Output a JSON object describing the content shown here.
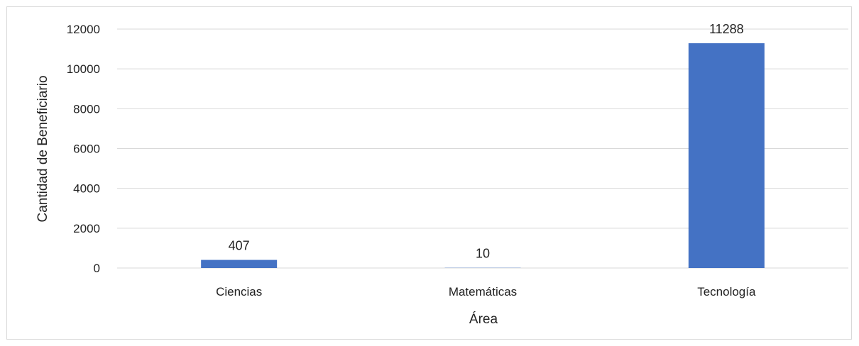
{
  "chart_data": {
    "type": "bar",
    "title": "",
    "xlabel": "Área",
    "ylabel": "Cantidad de Beneficiario",
    "categories": [
      "Ciencias",
      "Matemáticas",
      "Tecnología"
    ],
    "values": [
      407,
      10,
      11288
    ],
    "data_labels": [
      "407",
      "10",
      "11288"
    ],
    "ylim": [
      0,
      12000
    ],
    "yticks": [
      0,
      2000,
      4000,
      6000,
      8000,
      10000,
      12000
    ],
    "ytick_labels": [
      "0",
      "2000",
      "4000",
      "6000",
      "8000",
      "10000",
      "12000"
    ],
    "grid": true,
    "legend": "none",
    "bar_color": "#4472c4",
    "grid_color": "#d9d9d9"
  }
}
